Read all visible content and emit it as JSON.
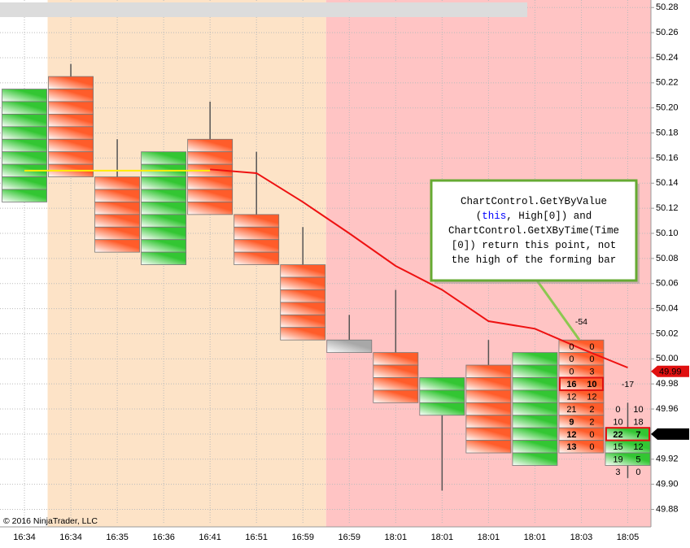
{
  "chart_data": {
    "type": "candlestick",
    "categories": [
      "16:34",
      "16:34",
      "16:35",
      "16:36",
      "16:41",
      "16:51",
      "16:59",
      "16:59",
      "18:01",
      "18:01",
      "18:01",
      "18:01",
      "18:03",
      "18:05"
    ],
    "open": [
      50.125,
      50.225,
      50.145,
      50.075,
      50.175,
      50.115,
      50.075,
      50.015,
      50.005,
      49.955,
      49.995,
      49.915,
      50.015,
      49.915
    ],
    "high": [
      50.215,
      50.235,
      50.175,
      50.165,
      50.205,
      50.165,
      50.105,
      50.035,
      50.055,
      49.985,
      50.015,
      50.005,
      50.015,
      49.965
    ],
    "low": [
      50.125,
      50.145,
      50.085,
      50.075,
      50.115,
      50.075,
      50.015,
      50.005,
      49.965,
      49.895,
      49.925,
      49.915,
      49.925,
      49.905
    ],
    "close": [
      50.215,
      50.145,
      50.085,
      50.165,
      50.115,
      50.075,
      50.015,
      50.005,
      49.965,
      49.985,
      49.925,
      50.005,
      49.925,
      49.945
    ],
    "bar_colors": [
      "#33c633",
      "#ff5c2a",
      "#ff5c2a",
      "#33c633",
      "#ff5c2a",
      "#ff5c2a",
      "#ff5c2a",
      "#a8a8a8",
      "#ff5c2a",
      "#33c633",
      "#ff5c2a",
      "#33c633",
      "#ff5c2a",
      "#33c633"
    ],
    "regions": [
      {
        "from": 1,
        "to": 6,
        "color": "#fde3c7"
      },
      {
        "from": 7,
        "to": 13,
        "color": "#ffc4c4"
      }
    ],
    "lines": [
      {
        "color": "#ee1111",
        "values": [
          null,
          null,
          null,
          null,
          50.151,
          50.148,
          50.125,
          50.1,
          50.074,
          50.055,
          50.03,
          50.024,
          50.008,
          49.993
        ]
      },
      {
        "color": "#ffee00",
        "values": [
          50.15,
          50.15,
          50.15,
          50.15,
          50.15,
          null,
          null,
          null,
          null,
          null,
          null,
          null,
          null,
          null
        ]
      }
    ],
    "footprint": [
      null,
      null,
      null,
      null,
      null,
      null,
      null,
      null,
      null,
      null,
      null,
      null,
      {
        "prices": [
          50.01,
          50.0,
          49.99,
          49.98,
          49.97,
          49.96,
          49.95,
          49.94,
          49.93
        ],
        "bid": [
          0,
          0,
          0,
          16,
          12,
          21,
          9,
          12,
          13
        ],
        "ask": [
          0,
          0,
          3,
          10,
          12,
          2,
          2,
          0,
          0
        ],
        "delta": -54,
        "poc_row": 3,
        "imbalance_rows": [
          3,
          6,
          7,
          8
        ]
      },
      {
        "prices": [
          49.96,
          49.95,
          49.94,
          49.93,
          49.92,
          49.91
        ],
        "bid": [
          0,
          10,
          22,
          15,
          19,
          3
        ],
        "ask": [
          10,
          18,
          7,
          12,
          5,
          0
        ],
        "delta": -17,
        "poc_row": 2,
        "imbalance_rows": []
      }
    ],
    "price_markers": [
      {
        "value": 49.99,
        "color": "#e01010"
      },
      {
        "value": 49.94,
        "color": "#000000"
      }
    ],
    "annotation": {
      "lines": [
        [
          "ChartControl.GetYByValue"
        ],
        [
          "(",
          "this",
          ", High[0]) and"
        ],
        [
          "ChartControl.GetXByTime(Time"
        ],
        [
          "[0]) return this point, not"
        ],
        [
          "the high of the forming bar"
        ]
      ],
      "keyword_color": "#0000ff",
      "border_color": "#66aa33"
    },
    "copyright": "© 2016 NinjaTrader, LLC",
    "ylim": [
      49.868,
      50.286
    ],
    "yticks": [
      50.28,
      50.26,
      50.24,
      50.22,
      {
        "value": 50.2,
        "label": "50.20"
      },
      50.18,
      50.16,
      50.14,
      50.12,
      {
        "value": 50.1,
        "label": "50.10"
      },
      50.08,
      50.06,
      50.04,
      50.02,
      {
        "value": 50,
        "label": "50.00"
      },
      49.98,
      49.96,
      49.94,
      49.92,
      {
        "value": 49.9,
        "label": "49.90"
      },
      49.88
    ],
    "grid": true
  }
}
